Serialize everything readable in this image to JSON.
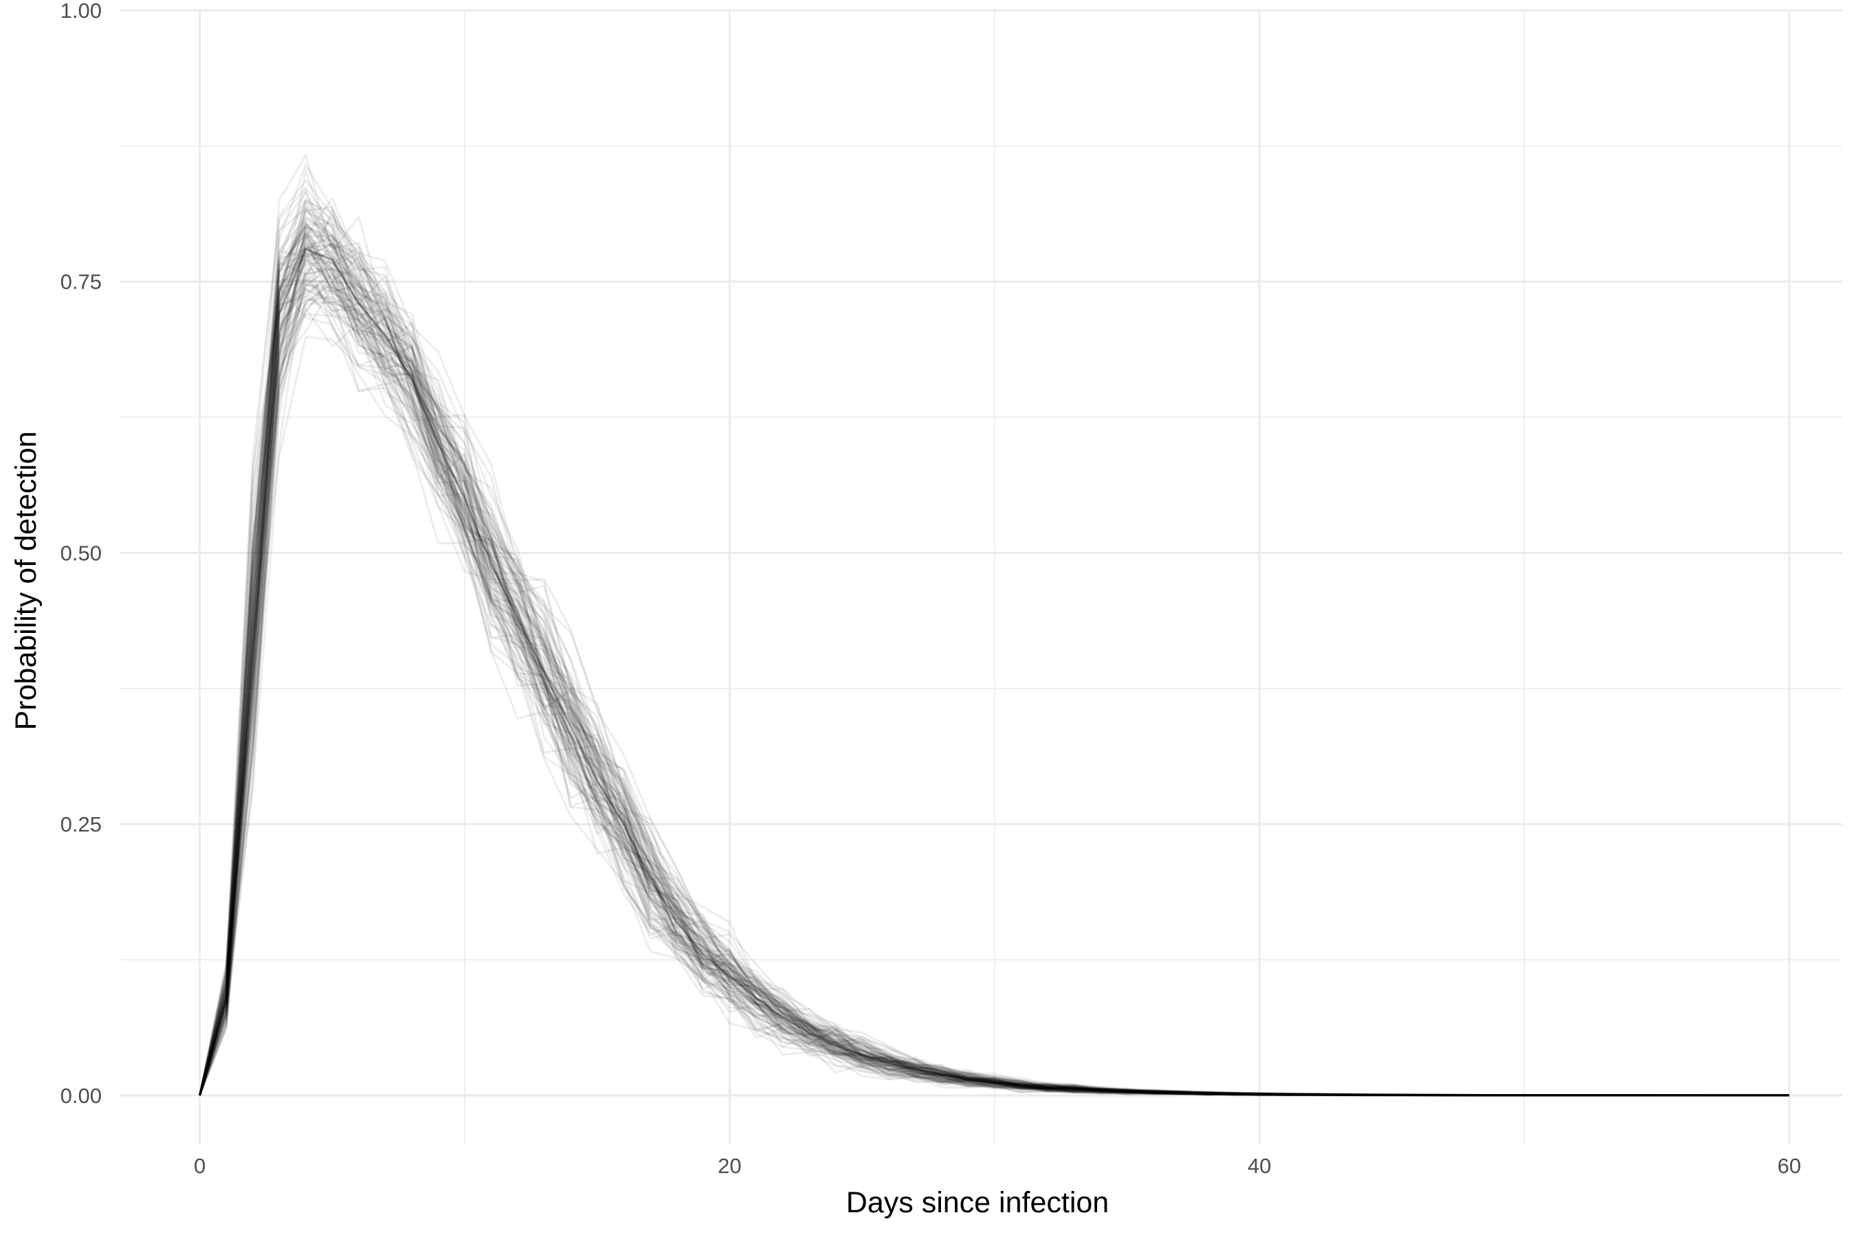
{
  "chart_data": {
    "type": "line",
    "title": "",
    "xlabel": "Days since infection",
    "ylabel": "Probability of detection",
    "xlim": [
      -3,
      62
    ],
    "ylim": [
      -0.045,
      1.0
    ],
    "x_ticks": [
      0,
      20,
      40,
      60
    ],
    "x_tick_labels": [
      "0",
      "20",
      "40",
      "60"
    ],
    "y_ticks": [
      0,
      0.25,
      0.5,
      0.75,
      1.0
    ],
    "y_tick_labels": [
      "0.00",
      "0.25",
      "0.50",
      "0.75",
      "1.00"
    ],
    "grid": true,
    "legend": "none",
    "line_color": "#000000",
    "grid_color": "#ebebeb",
    "n_draws": 100,
    "x": [
      0,
      1,
      2,
      3,
      4,
      5,
      6,
      7,
      8,
      9,
      10,
      11,
      12,
      13,
      14,
      15,
      16,
      17,
      18,
      19,
      20,
      21,
      22,
      23,
      24,
      25,
      26,
      27,
      28,
      29,
      30,
      31,
      32,
      33,
      34,
      35,
      36,
      37,
      38,
      39,
      40,
      41,
      42,
      43,
      44,
      45,
      46,
      47,
      48,
      49,
      50,
      51,
      52,
      53,
      54,
      55,
      56,
      57,
      58,
      59,
      60
    ],
    "series": [
      {
        "stat": "median",
        "values": [
          0.0,
          0.09,
          0.42,
          0.72,
          0.78,
          0.77,
          0.73,
          0.7,
          0.66,
          0.6,
          0.55,
          0.49,
          0.44,
          0.39,
          0.34,
          0.29,
          0.25,
          0.2,
          0.16,
          0.13,
          0.11,
          0.09,
          0.072,
          0.058,
          0.046,
          0.037,
          0.03,
          0.024,
          0.019,
          0.015,
          0.012,
          0.009,
          0.007,
          0.006,
          0.0047,
          0.0037,
          0.0029,
          0.0023,
          0.0018,
          0.0014,
          0.0011,
          0.0009,
          0.0007,
          0.00055,
          0.00043,
          0.00034,
          0.00027,
          0.00021,
          0.00016,
          0.00013,
          0.0001,
          8e-05,
          6e-05,
          5e-05,
          4e-05,
          3e-05,
          2e-05,
          2e-05,
          1e-05,
          1e-05,
          0.0
        ]
      },
      {
        "stat": "lower",
        "values": [
          0.0,
          0.05,
          0.22,
          0.55,
          0.66,
          0.66,
          0.63,
          0.6,
          0.55,
          0.5,
          0.44,
          0.39,
          0.34,
          0.29,
          0.24,
          0.19,
          0.16,
          0.12,
          0.1,
          0.08,
          0.06,
          0.045,
          0.035,
          0.025,
          0.018,
          0.014,
          0.01,
          0.008,
          0.006,
          0.004,
          0.003,
          0.002,
          0.0015,
          0.001,
          0.0008,
          0.0006,
          0.0004,
          0.0003,
          0.0002,
          0.00015,
          0.0001,
          8e-05,
          6e-05,
          4e-05,
          3e-05,
          2e-05,
          2e-05,
          1e-05,
          1e-05,
          1e-05,
          0.0,
          0.0,
          0.0,
          0.0,
          0.0,
          0.0,
          0.0,
          0.0,
          0.0,
          0.0,
          0.0
        ]
      },
      {
        "stat": "upper",
        "values": [
          0.0,
          0.14,
          0.62,
          0.86,
          0.88,
          0.85,
          0.82,
          0.79,
          0.75,
          0.7,
          0.65,
          0.6,
          0.55,
          0.5,
          0.44,
          0.39,
          0.33,
          0.28,
          0.23,
          0.19,
          0.16,
          0.13,
          0.11,
          0.09,
          0.075,
          0.06,
          0.048,
          0.04,
          0.032,
          0.026,
          0.021,
          0.017,
          0.014,
          0.011,
          0.009,
          0.0075,
          0.006,
          0.005,
          0.004,
          0.0033,
          0.0027,
          0.0022,
          0.0018,
          0.0015,
          0.0012,
          0.001,
          0.0008,
          0.00065,
          0.00053,
          0.00043,
          0.00035,
          0.00028,
          0.00023,
          0.00019,
          0.00015,
          0.00012,
          0.0001,
          8e-05,
          7e-05,
          5e-05,
          4e-05
        ]
      }
    ]
  }
}
